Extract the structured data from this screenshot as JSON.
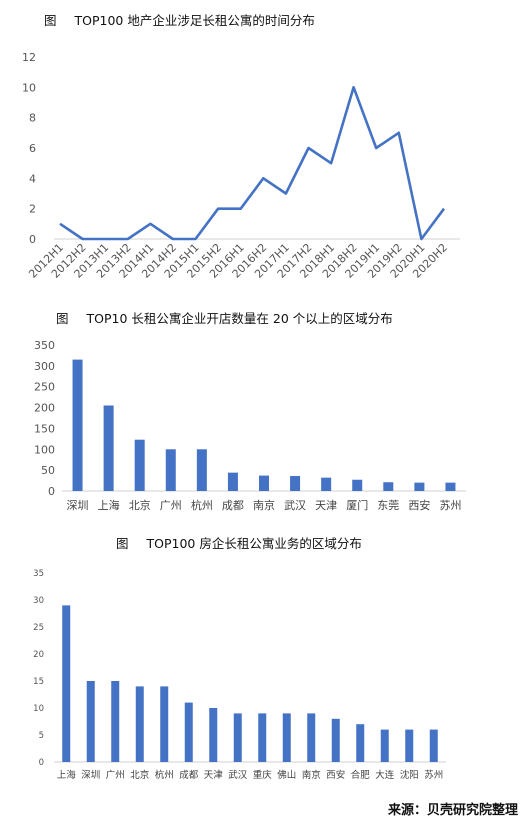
{
  "figure_prefix": "图",
  "chart_data": [
    {
      "type": "line",
      "title": "TOP100 地产企业涉足长租公寓的时间分布",
      "categories": [
        "2012H1",
        "2012H2",
        "2013H1",
        "2013H2",
        "2014H1",
        "2014H2",
        "2015H1",
        "2015H2",
        "2016H1",
        "2016H2",
        "2017H1",
        "2017H2",
        "2018H1",
        "2018H2",
        "2019H1",
        "2019H2",
        "2020H1",
        "2020H2"
      ],
      "values": [
        1,
        0,
        0,
        0,
        1,
        0,
        0,
        2,
        2,
        4,
        3,
        6,
        5,
        10,
        6,
        7,
        0,
        2
      ],
      "ylim": [
        0,
        12
      ],
      "yticks": [
        0,
        2,
        4,
        6,
        8,
        10,
        12
      ],
      "color": "#4472C4",
      "grid": false
    },
    {
      "type": "bar",
      "title": "TOP10 长租公寓企业开店数量在 20 个以上的区域分布",
      "categories": [
        "深圳",
        "上海",
        "北京",
        "广州",
        "杭州",
        "成都",
        "南京",
        "武汉",
        "天津",
        "厦门",
        "东莞",
        "西安",
        "苏州"
      ],
      "values": [
        315,
        205,
        123,
        100,
        100,
        44,
        37,
        36,
        32,
        27,
        21,
        20,
        20
      ],
      "ylim": [
        0,
        350
      ],
      "yticks": [
        0,
        50,
        100,
        150,
        200,
        250,
        300,
        350
      ],
      "color": "#4472C4",
      "grid": false
    },
    {
      "type": "bar",
      "title": "TOP100 房企长租公寓业务的区域分布",
      "categories": [
        "上海",
        "深圳",
        "广州",
        "北京",
        "杭州",
        "成都",
        "天津",
        "武汉",
        "重庆",
        "佛山",
        "南京",
        "西安",
        "合肥",
        "大连",
        "沈阳",
        "苏州"
      ],
      "values": [
        29,
        15,
        15,
        14,
        14,
        11,
        10,
        9,
        9,
        9,
        9,
        8,
        7,
        6,
        6,
        6
      ],
      "ylim": [
        0,
        35
      ],
      "yticks": [
        0,
        5,
        10,
        15,
        20,
        25,
        30,
        35
      ],
      "color": "#4472C4",
      "grid": false
    }
  ],
  "source_text": "来源：贝壳研究院整理"
}
